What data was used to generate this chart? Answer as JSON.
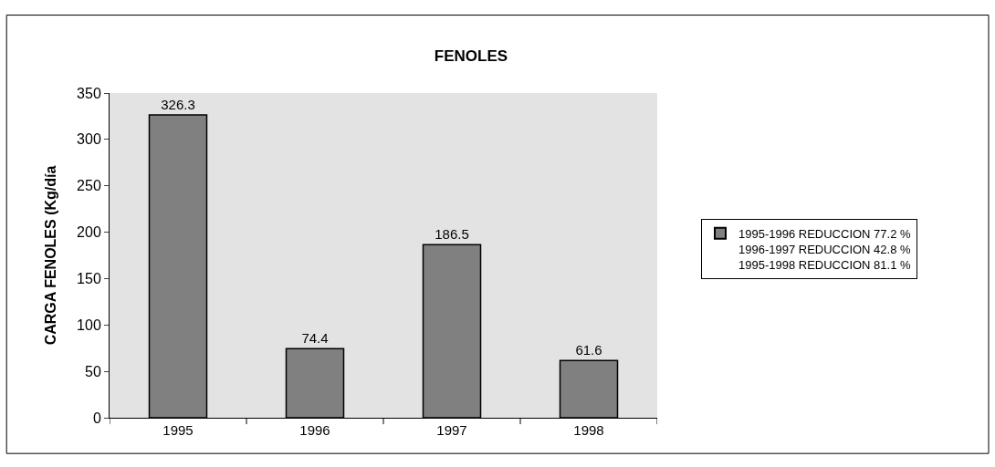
{
  "chart_data": {
    "type": "bar",
    "title": "FENOLES",
    "ylabel": "CARGA FENOLES (Kg/día",
    "categories": [
      "1995",
      "1996",
      "1997",
      "1998"
    ],
    "series": [
      {
        "name": "1995-1996 REDUCCION 77.2 %\n1996-1997 REDUCCION 42.8 %\n1995-1998 REDUCCION 81.1 %",
        "color": "#808080",
        "values": [
          326.3,
          74.4,
          186.5,
          61.6
        ]
      }
    ],
    "ylim": [
      0,
      350
    ],
    "yticks": [
      0,
      50,
      100,
      150,
      200,
      250,
      300,
      350
    ],
    "grid": false,
    "legend": "right",
    "data_labels": true
  }
}
